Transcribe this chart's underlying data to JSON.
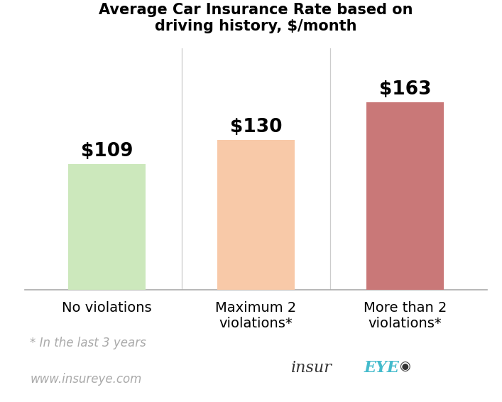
{
  "title": "Average Car Insurance Rate based on\ndriving history, $/month",
  "categories": [
    "No violations",
    "Maximum 2\nviolations*",
    "More than 2\nviolations*"
  ],
  "values": [
    109,
    130,
    163
  ],
  "bar_colors": [
    "#cce8bc",
    "#f8c9a8",
    "#c97878"
  ],
  "bar_labels": [
    "$109",
    "$130",
    "$163"
  ],
  "ylim": [
    0,
    210
  ],
  "background_color": "#ffffff",
  "title_fontsize": 15,
  "label_fontsize": 19,
  "tick_fontsize": 14,
  "footnote_line1": "* In the last 3 years",
  "footnote_line2": "www.insureye.com",
  "footnote_fontsize": 12,
  "footnote_color": "#aaaaaa",
  "logo_insur_color": "#333333",
  "logo_eye_color": "#44bbcc",
  "logo_fontsize": 16
}
